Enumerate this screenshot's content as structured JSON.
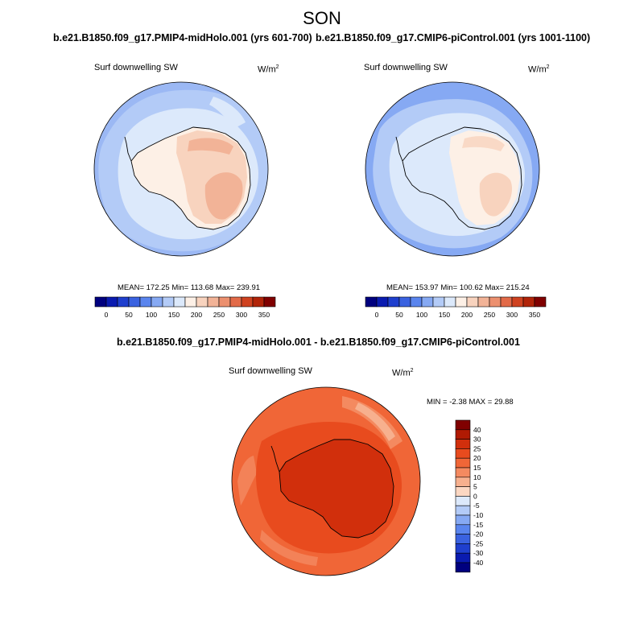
{
  "figure": {
    "title": "SON"
  },
  "panel_left": {
    "title": "b.e21.B1850.f09_g17.PMIP4-midHolo.001 (yrs 601-700)",
    "field": "Surf downwelling SW",
    "units": "W/m",
    "units_sup": "2",
    "stats": "MEAN= 172.25   Min= 113.68   Max= 239.91"
  },
  "panel_right": {
    "title": "b.e21.B1850.f09_g17.CMIP6-piControl.001 (yrs 1001-1100)",
    "field": "Surf downwelling SW",
    "units": "W/m",
    "units_sup": "2",
    "stats": "MEAN= 153.97   Min= 100.62   Max= 215.24"
  },
  "panel_diff": {
    "title": "b.e21.B1850.f09_g17.PMIP4-midHolo.001 - b.e21.B1850.f09_g17.CMIP6-piControl.001",
    "field": "Surf downwelling SW",
    "units": "W/m",
    "units_sup": "2",
    "stats": "MIN =  -2.38 MAX =  29.88"
  },
  "colorbar_abs": {
    "labels": [
      "0",
      "50",
      "100",
      "150",
      "200",
      "250",
      "300",
      "350"
    ],
    "colors": [
      "#00007f",
      "#0a1bb0",
      "#1f3fce",
      "#3a62e0",
      "#5a85ee",
      "#86a9f3",
      "#b3cbf7",
      "#dce9fb",
      "#fdf0e6",
      "#f8d3be",
      "#f2b397",
      "#ec906f",
      "#e26a48",
      "#cf4220",
      "#b12409",
      "#800000"
    ]
  },
  "colorbar_diff": {
    "labels": [
      "40",
      "30",
      "25",
      "20",
      "15",
      "10",
      "5",
      "0",
      "-5",
      "-10",
      "-15",
      "-20",
      "-25",
      "-30",
      "-40"
    ],
    "colors": [
      "#800000",
      "#b01a03",
      "#d12f0c",
      "#e84b1e",
      "#f06637",
      "#f48a60",
      "#f7b08e",
      "#fbd7c2",
      "#dce9fb",
      "#b3cbf7",
      "#86a9f3",
      "#5a85ee",
      "#3a62e0",
      "#1f3fce",
      "#0a1bb0",
      "#00007f"
    ]
  },
  "map_colors": {
    "ocean_outer": "#b3cbf7",
    "ocean_mid": "#86a9f3",
    "ice_light": "#dce9fb",
    "land_light": "#fdf0e6",
    "land_mid": "#f8d3be",
    "land_high": "#f2b397",
    "diff_base": "#f06637",
    "diff_mid": "#e84b1e",
    "diff_high": "#d12f0c",
    "diff_low": "#f48a60",
    "diff_pale": "#f7b08e"
  }
}
